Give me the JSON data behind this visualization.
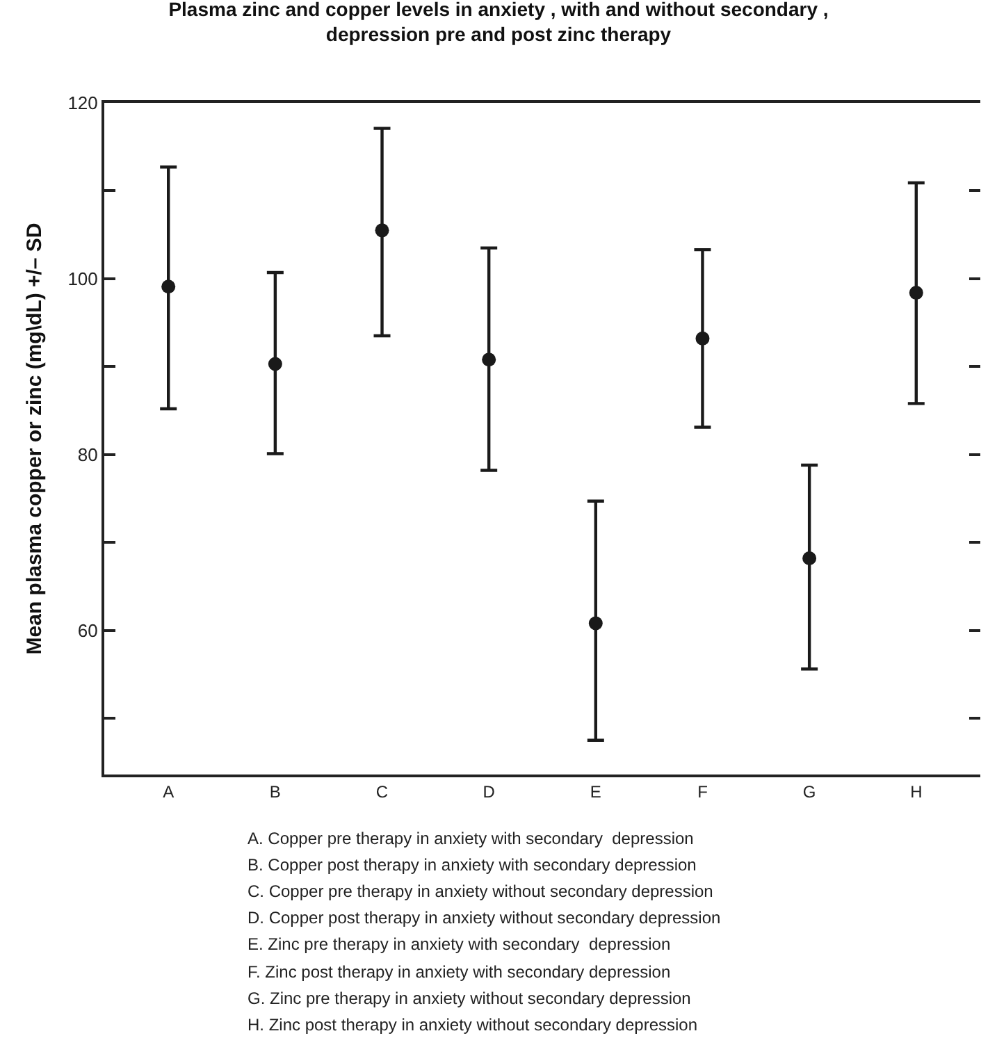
{
  "chart_data": {
    "type": "scatter",
    "title": "Plasma zinc and copper levels in anxiety , with and without secondary ,\ndepression pre and post zinc therapy",
    "ylabel": "Mean plasma copper or zinc (mg\\dL) +/– SD",
    "categories": [
      "A",
      "B",
      "C",
      "D",
      "E",
      "F",
      "G",
      "H"
    ],
    "series": [
      {
        "color": "#1a1a1a",
        "values": [
          99.1,
          90.3,
          105.5,
          90.8,
          60.8,
          93.2,
          68.2,
          98.4
        ],
        "errors": [
          [
            85.2,
            112.7
          ],
          [
            80.1,
            100.7
          ],
          [
            93.5,
            117.1
          ],
          [
            78.2,
            103.5
          ],
          [
            47.5,
            74.7
          ],
          [
            83.1,
            103.3
          ],
          [
            55.6,
            78.8
          ],
          [
            85.8,
            110.9
          ]
        ]
      }
    ],
    "ylim": [
      43.6,
      120
    ],
    "yticks": [
      {
        "value": 50,
        "label": null
      },
      60,
      {
        "value": 70,
        "label": null
      },
      80,
      {
        "value": 90,
        "label": null
      },
      100,
      {
        "value": 110,
        "label": null
      },
      120
    ],
    "marker": "circle",
    "annotations": [
      "A. Copper pre therapy in anxiety with secondary  depression",
      "B. Copper post therapy in anxiety with secondary depression",
      "C. Copper pre therapy in anxiety without secondary depression",
      "D. Copper post therapy in anxiety without secondary depression",
      "E. Zinc pre therapy in anxiety with secondary  depression",
      "F. Zinc post therapy in anxiety with secondary depression",
      "G. Zinc pre therapy in anxiety without secondary depression",
      "H. Zinc post therapy in anxiety without secondary depression"
    ]
  }
}
